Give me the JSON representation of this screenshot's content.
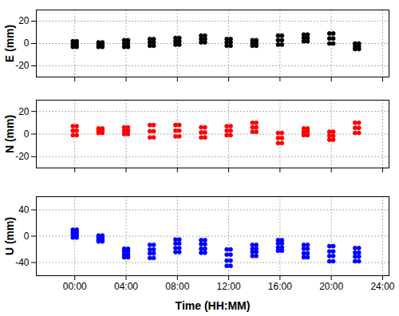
{
  "chart_data": [
    {
      "type": "scatter",
      "y_label": "E (mm)",
      "color": "#000000",
      "marker": "circle",
      "grid": true,
      "tick_labels": "y",
      "xlim": [
        -3,
        24.5
      ],
      "xticks": [
        {
          "value": 0,
          "label": "00:00"
        },
        {
          "value": 4,
          "label": "04:00"
        },
        {
          "value": 8,
          "label": "08:00"
        },
        {
          "value": 12,
          "label": "12:00"
        },
        {
          "value": 16,
          "label": "16:00"
        },
        {
          "value": 20,
          "label": "20:00"
        },
        {
          "value": 24,
          "label": "24:00"
        }
      ],
      "ylim": [
        -30,
        30
      ],
      "yticks": [
        -20,
        0,
        20
      ],
      "x": [
        -0.15,
        -0.15,
        -0.15,
        0.15,
        0.15,
        0.15,
        1.85,
        1.85,
        1.85,
        2.15,
        2.15,
        2.15,
        3.85,
        3.85,
        3.85,
        4.15,
        4.15,
        4.15,
        5.85,
        5.85,
        5.85,
        6.15,
        6.15,
        6.15,
        7.85,
        7.85,
        7.85,
        8.15,
        8.15,
        8.15,
        9.85,
        9.85,
        9.85,
        10.15,
        10.15,
        10.15,
        11.85,
        11.85,
        11.85,
        12.15,
        12.15,
        12.15,
        13.85,
        13.85,
        13.85,
        14.15,
        14.15,
        14.15,
        15.85,
        15.85,
        15.85,
        16.15,
        16.15,
        16.15,
        17.85,
        17.85,
        17.85,
        18.15,
        18.15,
        18.15,
        19.85,
        19.85,
        19.85,
        20.15,
        20.15,
        20.15,
        21.85,
        21.85,
        21.85,
        22.15,
        22.15,
        22.15
      ],
      "values": [
        -3,
        -0.5,
        2,
        -3,
        -0.5,
        2,
        -3,
        -1,
        1,
        -3,
        -1,
        1,
        -3,
        0,
        3,
        -3,
        0,
        3,
        -2,
        1,
        4,
        -2,
        1,
        4,
        -1,
        2,
        5,
        -1,
        2,
        5,
        1,
        4,
        7,
        1,
        4,
        7,
        -2,
        1,
        4,
        -2,
        1,
        4,
        -2,
        0.5,
        3,
        -2,
        0.5,
        3,
        -1,
        3,
        7,
        -1,
        3,
        7,
        2,
        5,
        8,
        2,
        5,
        8,
        0,
        4.5,
        9,
        0,
        4.5,
        9,
        -5,
        -2.5,
        0,
        -5,
        -2.5,
        0
      ]
    },
    {
      "type": "scatter",
      "y_label": "N (mm)",
      "color": "#ff0000",
      "marker": "circle",
      "grid": true,
      "tick_labels": "y",
      "xlim": [
        -3,
        24.5
      ],
      "xticks": [
        {
          "value": 0,
          "label": "00:00"
        },
        {
          "value": 4,
          "label": "04:00"
        },
        {
          "value": 8,
          "label": "08:00"
        },
        {
          "value": 12,
          "label": "12:00"
        },
        {
          "value": 16,
          "label": "16:00"
        },
        {
          "value": 20,
          "label": "20:00"
        },
        {
          "value": 24,
          "label": "24:00"
        }
      ],
      "ylim": [
        -30,
        30
      ],
      "yticks": [
        -20,
        0,
        20
      ],
      "x": [
        -0.15,
        -0.15,
        -0.15,
        0.15,
        0.15,
        0.15,
        1.85,
        1.85,
        1.85,
        2.15,
        2.15,
        2.15,
        3.85,
        3.85,
        3.85,
        4.15,
        4.15,
        4.15,
        5.85,
        5.85,
        5.85,
        6.15,
        6.15,
        6.15,
        7.85,
        7.85,
        7.85,
        8.15,
        8.15,
        8.15,
        9.85,
        9.85,
        9.85,
        10.15,
        10.15,
        10.15,
        11.85,
        11.85,
        11.85,
        12.15,
        12.15,
        12.15,
        13.85,
        13.85,
        13.85,
        14.15,
        14.15,
        14.15,
        15.85,
        15.85,
        15.85,
        16.15,
        16.15,
        16.15,
        17.85,
        17.85,
        17.85,
        18.15,
        18.15,
        18.15,
        19.85,
        19.85,
        19.85,
        20.15,
        20.15,
        20.15,
        21.85,
        21.85,
        21.85,
        22.15,
        22.15,
        22.15
      ],
      "values": [
        -1,
        3,
        7,
        -1,
        3,
        7,
        1,
        3,
        5,
        1,
        3,
        5,
        0,
        3,
        6,
        0,
        3,
        6,
        -3,
        2.5,
        8,
        -3,
        2.5,
        8,
        -2,
        3,
        8,
        -2,
        3,
        8,
        -3,
        1.5,
        6,
        -3,
        1.5,
        6,
        -1,
        3,
        7,
        -1,
        3,
        7,
        2,
        6,
        10,
        2,
        6,
        10,
        -8,
        -3.5,
        1,
        -8,
        -3.5,
        1,
        -1,
        2,
        5,
        -1,
        2,
        5,
        -5,
        -1.5,
        2,
        -5,
        -1.5,
        2,
        1,
        5.5,
        10,
        1,
        5.5,
        10
      ]
    },
    {
      "type": "scatter",
      "y_label": "U (mm)",
      "x_label": "Time (HH:MM)",
      "color": "#0000ff",
      "marker": "circle",
      "grid": true,
      "xlim": [
        -3,
        24.5
      ],
      "xticks": [
        {
          "value": 0,
          "label": "00:00"
        },
        {
          "value": 4,
          "label": "04:00"
        },
        {
          "value": 8,
          "label": "08:00"
        },
        {
          "value": 12,
          "label": "12:00"
        },
        {
          "value": 16,
          "label": "16:00"
        },
        {
          "value": 20,
          "label": "20:00"
        },
        {
          "value": 24,
          "label": "24:00"
        }
      ],
      "ylim": [
        -60,
        60
      ],
      "yticks": [
        -40,
        0,
        40
      ],
      "x": [
        -0.15,
        -0.15,
        -0.15,
        -0.15,
        0.15,
        0.15,
        0.15,
        0.15,
        1.85,
        1.85,
        1.85,
        1.85,
        2.15,
        2.15,
        2.15,
        2.15,
        3.85,
        3.85,
        3.85,
        3.85,
        4.15,
        4.15,
        4.15,
        4.15,
        5.85,
        5.85,
        5.85,
        5.85,
        6.15,
        6.15,
        6.15,
        6.15,
        7.85,
        7.85,
        7.85,
        7.85,
        8.15,
        8.15,
        8.15,
        8.15,
        9.85,
        9.85,
        9.85,
        9.85,
        10.15,
        10.15,
        10.15,
        10.15,
        11.85,
        11.85,
        11.85,
        11.85,
        12.15,
        12.15,
        12.15,
        12.15,
        13.85,
        13.85,
        13.85,
        13.85,
        14.15,
        14.15,
        14.15,
        14.15,
        15.85,
        15.85,
        15.85,
        15.85,
        16.15,
        16.15,
        16.15,
        16.15,
        17.85,
        17.85,
        17.85,
        17.85,
        18.15,
        18.15,
        18.15,
        18.15,
        19.85,
        19.85,
        19.85,
        19.85,
        20.15,
        20.15,
        20.15,
        20.15,
        21.85,
        21.85,
        21.85,
        21.85,
        22.15,
        22.15,
        22.15,
        22.15
      ],
      "values": [
        -2,
        2,
        6,
        10,
        -2,
        2,
        6,
        10,
        -8,
        -5,
        -2,
        1,
        -8,
        -5,
        -2,
        1,
        -32,
        -28,
        -23,
        -19,
        -32,
        -28,
        -23,
        -19,
        -33,
        -26,
        -20,
        -13,
        -33,
        -26,
        -20,
        -13,
        -24,
        -18,
        -11,
        -5,
        -24,
        -18,
        -11,
        -5,
        -25,
        -19,
        -12,
        -6,
        -25,
        -19,
        -12,
        -6,
        -45,
        -37,
        -28,
        -20,
        -45,
        -37,
        -28,
        -20,
        -30,
        -24,
        -19,
        -13,
        -30,
        -24,
        -19,
        -13,
        -22,
        -17,
        -11,
        -6,
        -22,
        -17,
        -11,
        -6,
        -32,
        -26,
        -19,
        -13,
        -32,
        -26,
        -19,
        -13,
        -38,
        -30,
        -23,
        -15,
        -38,
        -30,
        -23,
        -15,
        -38,
        -31,
        -25,
        -18,
        -38,
        -31,
        -25,
        -18
      ]
    }
  ]
}
